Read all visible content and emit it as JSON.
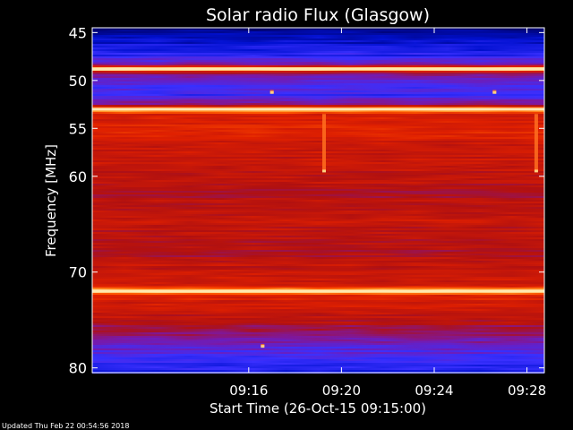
{
  "chart_data": {
    "type": "heatmap",
    "title": "Solar radio Flux (Glasgow)",
    "ylabel": "Frequency [MHz]",
    "xlabel": "Start Time (26-Oct-15 09:15:00)",
    "footer": "Updated Thu Feb 22 00:54:56 2018",
    "x_range_minutes": [
      9.25,
      28.75
    ],
    "y_range_mhz": [
      44.5,
      80.5
    ],
    "x_ticks": [
      {
        "label": "09:16",
        "minute": 16
      },
      {
        "label": "09:20",
        "minute": 20
      },
      {
        "label": "09:24",
        "minute": 24
      },
      {
        "label": "09:28",
        "minute": 28
      }
    ],
    "y_ticks": [
      {
        "label": "45",
        "mhz": 45
      },
      {
        "label": "50",
        "mhz": 50
      },
      {
        "label": "55",
        "mhz": 55
      },
      {
        "label": "60",
        "mhz": 60
      },
      {
        "label": "70",
        "mhz": 70
      },
      {
        "label": "80",
        "mhz": 80
      }
    ],
    "colormap": [
      "#000060",
      "#0010d0",
      "#3a30ff",
      "#7a18a8",
      "#b01010",
      "#e02000",
      "#ff5a00",
      "#ffb040",
      "#ffffd0"
    ],
    "intensity_profile": [
      {
        "mhz": 44.5,
        "level": 0.02
      },
      {
        "mhz": 45.0,
        "level": 0.05
      },
      {
        "mhz": 46.0,
        "level": 0.12
      },
      {
        "mhz": 47.5,
        "level": 0.22
      },
      {
        "mhz": 48.4,
        "level": 0.4
      },
      {
        "mhz": 48.8,
        "level": 1.0
      },
      {
        "mhz": 49.2,
        "level": 0.45
      },
      {
        "mhz": 50.0,
        "level": 0.3
      },
      {
        "mhz": 51.5,
        "level": 0.25
      },
      {
        "mhz": 52.5,
        "level": 0.4
      },
      {
        "mhz": 53.0,
        "level": 0.95
      },
      {
        "mhz": 53.5,
        "level": 0.6
      },
      {
        "mhz": 55.0,
        "level": 0.62
      },
      {
        "mhz": 57.0,
        "level": 0.56
      },
      {
        "mhz": 60.0,
        "level": 0.54
      },
      {
        "mhz": 62.0,
        "level": 0.5
      },
      {
        "mhz": 65.0,
        "level": 0.55
      },
      {
        "mhz": 68.0,
        "level": 0.5
      },
      {
        "mhz": 71.5,
        "level": 0.6
      },
      {
        "mhz": 72.0,
        "level": 0.95
      },
      {
        "mhz": 72.5,
        "level": 0.6
      },
      {
        "mhz": 74.0,
        "level": 0.58
      },
      {
        "mhz": 76.0,
        "level": 0.45
      },
      {
        "mhz": 78.0,
        "level": 0.32
      },
      {
        "mhz": 79.5,
        "level": 0.22
      },
      {
        "mhz": 80.5,
        "level": 0.2
      }
    ],
    "bright_lines_mhz": [
      48.8,
      53.0,
      72.0
    ],
    "bursts": [
      {
        "minute": 19.25,
        "mhz_from": 53.5,
        "mhz_to": 59.5
      },
      {
        "minute": 28.4,
        "mhz_from": 53.5,
        "mhz_to": 59.5
      },
      {
        "minute": 17.0,
        "mhz_from": 51.0,
        "mhz_to": 51.3
      },
      {
        "minute": 26.6,
        "mhz_from": 51.0,
        "mhz_to": 51.3
      },
      {
        "minute": 16.6,
        "mhz_from": 77.5,
        "mhz_to": 77.8
      }
    ]
  }
}
